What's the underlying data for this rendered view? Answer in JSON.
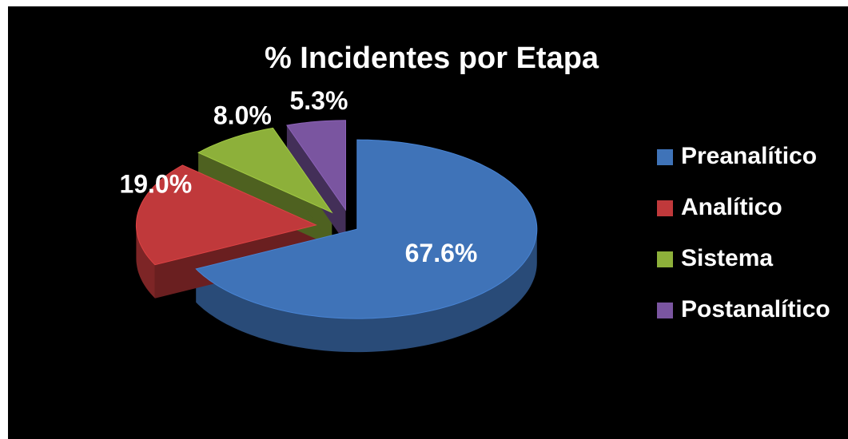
{
  "chart_data": {
    "type": "pie",
    "title": "% Incidentes por Etapa",
    "categories": [
      "Preanalítico",
      "Analítico",
      "Sistema",
      "Postanalítico"
    ],
    "values": [
      67.6,
      19.0,
      8.0,
      5.3
    ],
    "value_labels": [
      "67.6%",
      "19.0%",
      "8.0%",
      "5.3%"
    ],
    "colors": [
      "#3f73b8",
      "#c0393b",
      "#8db03a",
      "#7a55a0"
    ],
    "legend": "right"
  }
}
